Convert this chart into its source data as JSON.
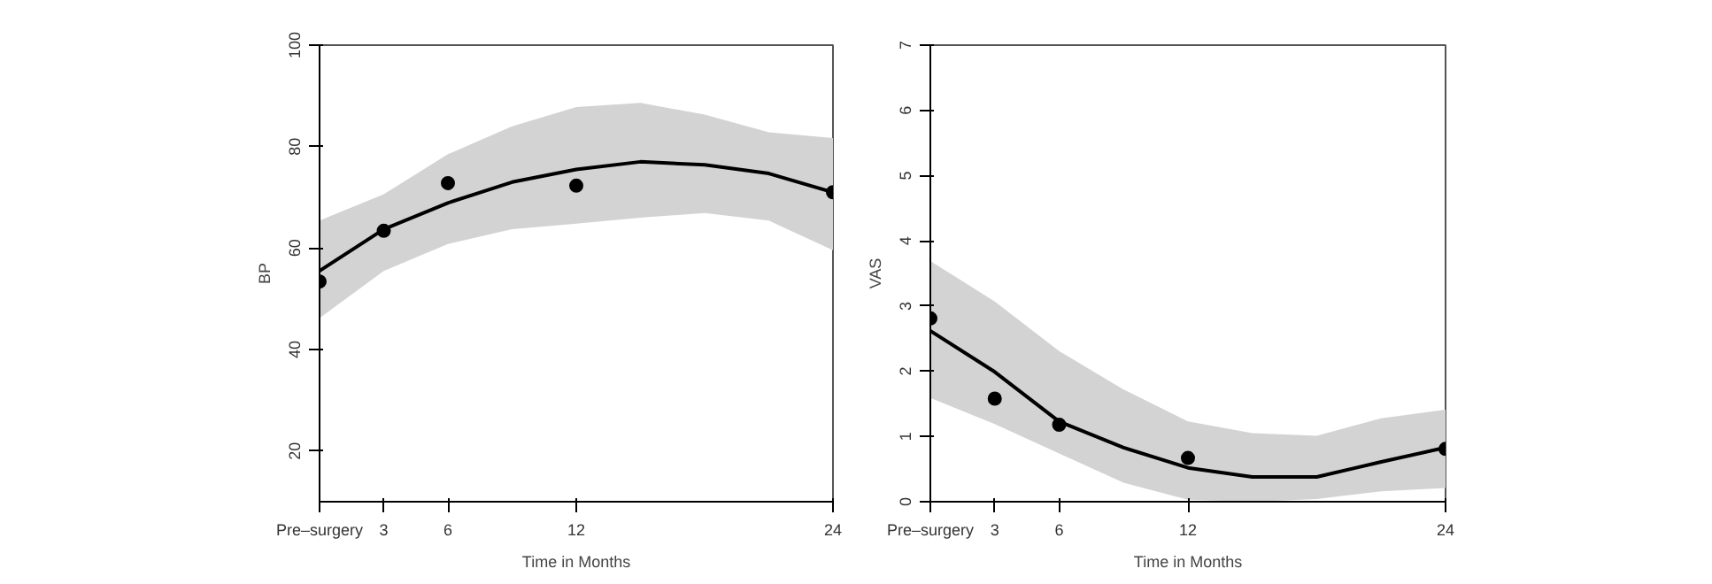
{
  "chart_data": [
    {
      "type": "scatter",
      "xlabel": "Time in Months",
      "ylabel": "BP",
      "xlim": [
        0,
        24
      ],
      "ylim": [
        10,
        100
      ],
      "xticks": [
        {
          "value": 0,
          "label": "Pre–surgery"
        },
        3,
        6,
        12,
        24
      ],
      "yticks": [
        20,
        40,
        60,
        80,
        100
      ],
      "grid": false,
      "series": [
        {
          "marker": "circle",
          "color": "#000000",
          "x": [
            0,
            3,
            6,
            12,
            24
          ],
          "values": [
            53.4,
            63.4,
            72.8,
            72.3,
            71
          ]
        },
        {
          "type": "line",
          "line_style": "solid",
          "color": "#000000",
          "x": [
            0,
            3,
            6,
            9,
            12,
            15,
            18,
            21,
            24
          ],
          "values": [
            55.5,
            63.7,
            68.9,
            73,
            75.5,
            77,
            76.4,
            74.7,
            71
          ],
          "lower": [
            46.2,
            55.5,
            60.8,
            63.7,
            64.8,
            66,
            66.9,
            65.4,
            59.6
          ],
          "upper": [
            65.4,
            70.6,
            78.5,
            84,
            87.8,
            88.6,
            86.3,
            82.8,
            81.7
          ]
        }
      ]
    },
    {
      "type": "scatter",
      "xlabel": "Time in Months",
      "ylabel": "VAS",
      "xlim": [
        0,
        24
      ],
      "ylim": [
        0,
        7
      ],
      "xticks": [
        {
          "value": 0,
          "label": "Pre–surgery"
        },
        3,
        6,
        12,
        24
      ],
      "yticks": [
        0,
        1,
        2,
        3,
        4,
        5,
        6,
        7
      ],
      "grid": false,
      "series": [
        {
          "marker": "circle",
          "color": "#000000",
          "x": [
            0,
            3,
            6,
            12,
            24
          ],
          "values": [
            2.81,
            1.58,
            1.18,
            0.67,
            0.81
          ]
        },
        {
          "type": "line",
          "line_style": "solid",
          "color": "#000000",
          "x": [
            0,
            3,
            6,
            9,
            12,
            15,
            18,
            21,
            24
          ],
          "values": [
            2.62,
            1.99,
            1.23,
            0.83,
            0.52,
            0.38,
            0.38,
            0.61,
            0.83
          ],
          "lower": [
            1.59,
            1.19,
            0.74,
            0.29,
            0.03,
            0,
            0.04,
            0.16,
            0.21
          ],
          "upper": [
            3.69,
            3.07,
            2.31,
            1.72,
            1.23,
            1.05,
            1.01,
            1.28,
            1.41
          ]
        }
      ]
    }
  ]
}
